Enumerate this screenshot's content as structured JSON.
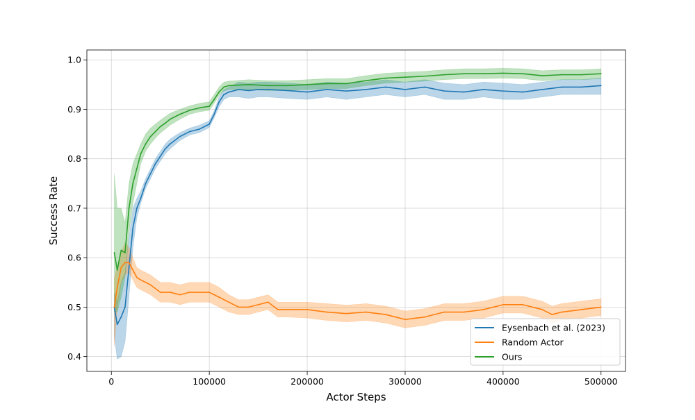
{
  "chart_data": {
    "type": "line",
    "xlabel": "Actor Steps",
    "ylabel": "Success Rate",
    "xlim": [
      -25000,
      525000
    ],
    "ylim": [
      0.37,
      1.02
    ],
    "x_ticks": [
      0,
      100000,
      200000,
      300000,
      400000,
      500000
    ],
    "x_tick_labels": [
      "0",
      "100000",
      "200000",
      "300000",
      "400000",
      "500000"
    ],
    "y_ticks": [
      0.4,
      0.5,
      0.6,
      0.7,
      0.8,
      0.9,
      1.0
    ],
    "y_tick_labels": [
      "0.4",
      "0.5",
      "0.6",
      "0.7",
      "0.8",
      "0.9",
      "1.0"
    ],
    "grid": true,
    "legend_position": "lower-right",
    "shaded_band": "variability band around each mean line",
    "series": [
      {
        "name": "Eysenbach et al. (2023)",
        "color": "#1f77b4",
        "x": [
          3000,
          6000,
          10000,
          14000,
          18000,
          22000,
          26000,
          30000,
          35000,
          40000,
          45000,
          50000,
          55000,
          60000,
          70000,
          80000,
          90000,
          100000,
          105000,
          110000,
          115000,
          120000,
          130000,
          140000,
          150000,
          160000,
          180000,
          200000,
          220000,
          240000,
          260000,
          280000,
          300000,
          320000,
          340000,
          360000,
          380000,
          400000,
          420000,
          440000,
          460000,
          480000,
          500000
        ],
        "y": [
          0.5,
          0.465,
          0.48,
          0.5,
          0.58,
          0.66,
          0.7,
          0.72,
          0.75,
          0.77,
          0.79,
          0.805,
          0.82,
          0.83,
          0.845,
          0.855,
          0.86,
          0.87,
          0.89,
          0.915,
          0.93,
          0.935,
          0.94,
          0.938,
          0.94,
          0.94,
          0.938,
          0.935,
          0.94,
          0.937,
          0.94,
          0.945,
          0.94,
          0.945,
          0.937,
          0.935,
          0.94,
          0.937,
          0.935,
          0.94,
          0.945,
          0.945,
          0.948
        ],
        "lower": [
          0.44,
          0.395,
          0.4,
          0.43,
          0.52,
          0.62,
          0.68,
          0.71,
          0.74,
          0.76,
          0.78,
          0.795,
          0.81,
          0.82,
          0.837,
          0.848,
          0.853,
          0.863,
          0.883,
          0.905,
          0.92,
          0.925,
          0.925,
          0.922,
          0.925,
          0.925,
          0.922,
          0.92,
          0.925,
          0.92,
          0.925,
          0.93,
          0.925,
          0.93,
          0.92,
          0.92,
          0.925,
          0.92,
          0.92,
          0.925,
          0.93,
          0.93,
          0.93
        ],
        "upper": [
          0.53,
          0.51,
          0.55,
          0.57,
          0.64,
          0.7,
          0.72,
          0.735,
          0.76,
          0.78,
          0.8,
          0.815,
          0.83,
          0.84,
          0.853,
          0.862,
          0.868,
          0.877,
          0.897,
          0.925,
          0.94,
          0.945,
          0.955,
          0.953,
          0.955,
          0.955,
          0.953,
          0.95,
          0.955,
          0.953,
          0.955,
          0.96,
          0.955,
          0.96,
          0.953,
          0.95,
          0.955,
          0.953,
          0.95,
          0.955,
          0.96,
          0.96,
          0.963
        ]
      },
      {
        "name": "Random Actor",
        "color": "#ff7f0e",
        "x": [
          3000,
          6000,
          10000,
          14000,
          18000,
          22000,
          26000,
          30000,
          35000,
          40000,
          50000,
          60000,
          70000,
          80000,
          90000,
          100000,
          110000,
          120000,
          130000,
          140000,
          150000,
          160000,
          170000,
          180000,
          200000,
          220000,
          240000,
          260000,
          280000,
          300000,
          320000,
          340000,
          360000,
          380000,
          400000,
          420000,
          440000,
          450000,
          460000,
          480000,
          500000
        ],
        "y": [
          0.5,
          0.54,
          0.58,
          0.59,
          0.59,
          0.575,
          0.56,
          0.555,
          0.55,
          0.545,
          0.53,
          0.53,
          0.525,
          0.53,
          0.53,
          0.53,
          0.52,
          0.51,
          0.5,
          0.5,
          0.505,
          0.51,
          0.495,
          0.495,
          0.495,
          0.49,
          0.487,
          0.49,
          0.485,
          0.475,
          0.48,
          0.49,
          0.49,
          0.495,
          0.505,
          0.505,
          0.495,
          0.485,
          0.49,
          0.495,
          0.5
        ],
        "lower": [
          0.42,
          0.5,
          0.55,
          0.565,
          0.57,
          0.555,
          0.54,
          0.535,
          0.53,
          0.525,
          0.51,
          0.51,
          0.505,
          0.51,
          0.51,
          0.51,
          0.5,
          0.49,
          0.485,
          0.485,
          0.49,
          0.495,
          0.48,
          0.48,
          0.478,
          0.473,
          0.47,
          0.473,
          0.468,
          0.458,
          0.463,
          0.473,
          0.473,
          0.478,
          0.488,
          0.488,
          0.478,
          0.468,
          0.473,
          0.478,
          0.483
        ],
        "upper": [
          0.56,
          0.58,
          0.61,
          0.63,
          0.62,
          0.6,
          0.58,
          0.575,
          0.57,
          0.565,
          0.55,
          0.55,
          0.545,
          0.55,
          0.55,
          0.55,
          0.54,
          0.525,
          0.515,
          0.515,
          0.52,
          0.525,
          0.51,
          0.51,
          0.51,
          0.507,
          0.504,
          0.507,
          0.502,
          0.492,
          0.497,
          0.507,
          0.507,
          0.512,
          0.522,
          0.522,
          0.512,
          0.502,
          0.507,
          0.512,
          0.517
        ]
      },
      {
        "name": "Ours",
        "color": "#2ca02c",
        "x": [
          3000,
          6000,
          10000,
          14000,
          18000,
          22000,
          26000,
          30000,
          35000,
          40000,
          45000,
          50000,
          55000,
          60000,
          70000,
          80000,
          90000,
          100000,
          105000,
          110000,
          115000,
          120000,
          140000,
          160000,
          180000,
          200000,
          220000,
          240000,
          260000,
          280000,
          300000,
          320000,
          340000,
          360000,
          380000,
          400000,
          420000,
          440000,
          460000,
          480000,
          500000
        ],
        "y": [
          0.61,
          0.575,
          0.615,
          0.61,
          0.7,
          0.75,
          0.78,
          0.81,
          0.83,
          0.845,
          0.855,
          0.865,
          0.872,
          0.88,
          0.89,
          0.898,
          0.903,
          0.906,
          0.92,
          0.935,
          0.945,
          0.948,
          0.95,
          0.948,
          0.948,
          0.95,
          0.952,
          0.952,
          0.958,
          0.963,
          0.965,
          0.967,
          0.97,
          0.972,
          0.972,
          0.973,
          0.972,
          0.968,
          0.97,
          0.97,
          0.972
        ],
        "lower": [
          0.49,
          0.49,
          0.52,
          0.56,
          0.65,
          0.71,
          0.75,
          0.79,
          0.815,
          0.83,
          0.842,
          0.852,
          0.86,
          0.868,
          0.88,
          0.89,
          0.895,
          0.898,
          0.912,
          0.928,
          0.937,
          0.94,
          0.94,
          0.938,
          0.938,
          0.94,
          0.942,
          0.942,
          0.948,
          0.953,
          0.955,
          0.957,
          0.96,
          0.962,
          0.962,
          0.963,
          0.962,
          0.958,
          0.96,
          0.96,
          0.962
        ],
        "upper": [
          0.77,
          0.7,
          0.7,
          0.67,
          0.75,
          0.79,
          0.81,
          0.83,
          0.85,
          0.862,
          0.87,
          0.878,
          0.885,
          0.892,
          0.9,
          0.907,
          0.912,
          0.915,
          0.93,
          0.945,
          0.955,
          0.957,
          0.96,
          0.958,
          0.958,
          0.96,
          0.962,
          0.962,
          0.968,
          0.973,
          0.975,
          0.977,
          0.98,
          0.982,
          0.982,
          0.983,
          0.982,
          0.978,
          0.98,
          0.98,
          0.982
        ]
      }
    ]
  }
}
